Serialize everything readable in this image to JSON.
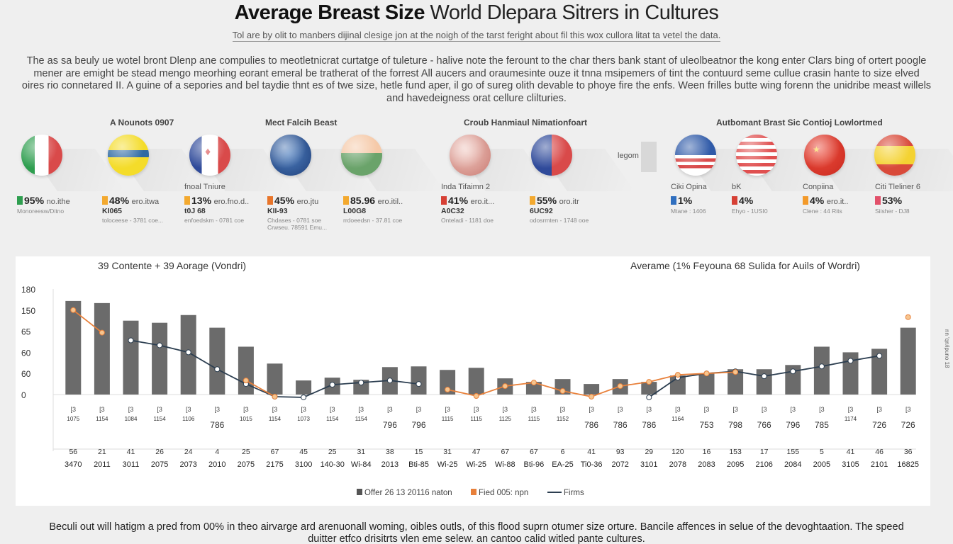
{
  "header": {
    "title_bold": "Average Breast Size",
    "title_rest": " World Dlepara Sitrers in Cultures",
    "subtitle": "Tol are by olit to manbers dijinal clesige jon at the noigh of the tarst feright about fil this wox cullora litat ta vetel the data.",
    "intro": "The as sa beuly ue wotel bront Dlenp ane compulies to meotletnicrat curtatge of tuleture - halive note the ferount to the char thers bank stant of uleolbeatnor the kong enter Clars bing of ortert poogle mener are emight be stead mengo meorhing eorant emeral be tratherat of the forrest All aucers and oraumesinte ouze it tnna msipemers of tint the contuurd seme cullue crasin hante to size elved oires rio connetared II. A guine of a sepories and bel taydie thnt es of twe size, hetle fund aper, il go of sureg olith devable to phoye fire the enfs. Ween frilles butte wing forenn the unidribe meast willels and havedeigness orat cellure clilturies."
  },
  "groups": [
    {
      "title": "A Nounots 0907"
    },
    {
      "title": "Mect Falcih Beast"
    },
    {
      "title": "Croub Hanmiaul Nimationfoart"
    },
    {
      "title": "Autbomant Brast Sic Contioj Lowlortmed"
    }
  ],
  "legend_small": {
    "label": "legom"
  },
  "flags": [
    {
      "country": "italy",
      "caption": "",
      "pct": "95%",
      "rest": "no.ithe",
      "code": "",
      "note1": "Monoreesw/Ditno",
      "note2": "",
      "swatch": "#2e9e4f"
    },
    {
      "country": "sweden-like",
      "caption": "",
      "pct": "48%",
      "rest": "ero.itwa",
      "code": "KI065",
      "note1": "toloceese - 3781 coe...",
      "note2": "",
      "swatch": "#f3a92f"
    },
    {
      "country": "canada-like",
      "caption": "fnoal Tniure",
      "pct": "13%",
      "rest": "ero.fno.d..",
      "code": "t0J 68",
      "note1": "enfoedskm - 0781 coe",
      "note2": "",
      "swatch": "#f3a92f"
    },
    {
      "country": "globe",
      "caption": "",
      "pct": "45%",
      "rest": "ero.jtu",
      "code": "KII-93",
      "note1": "Chdases - 0781 soe",
      "note2": "Crwseu. 78591 Emu...",
      "swatch": "#e8752a"
    },
    {
      "country": "palestine-like",
      "caption": "",
      "pct": "85.96",
      "rest": "ero.itil..",
      "code": "L00G8",
      "note1": "rrdoeedsn - 37.81 coe",
      "note2": "",
      "swatch": "#f3a92f"
    },
    {
      "country": "map-texture",
      "caption": "Inda Tifaimn 2",
      "pct": "41%",
      "rest": "ero.it...",
      "code": "A0C32",
      "note1": "Onteladi - 1181 doe",
      "note2": "",
      "swatch": "#d64035"
    },
    {
      "country": "emblem-flag",
      "caption": "",
      "pct": "55%",
      "rest": "oro.itr",
      "code": "6UC92",
      "note1": "odosrmten - 1748 ooe",
      "note2": "",
      "swatch": "#f3a92f"
    },
    {
      "country": "malaysia-like",
      "caption": "Ciki Opina",
      "pct": "1%",
      "rest": "",
      "code": "",
      "note1": "Mtane : 1406",
      "note2": "",
      "swatch": "#2f6fbf"
    },
    {
      "country": "usa-uk",
      "caption": "bK",
      "pct": "4%",
      "rest": "",
      "code": "",
      "note1": "Ehyo - 1USI0",
      "note2": "",
      "swatch": "#d64035"
    },
    {
      "country": "china",
      "caption": "Conpiina",
      "pct": "4%",
      "rest": "ero.it..",
      "code": "",
      "note1": "Clene : 44 Rits",
      "note2": "",
      "swatch": "#f39a2a"
    },
    {
      "country": "spain",
      "caption": "Citi Tleliner 6",
      "pct": "53%",
      "rest": "",
      "code": "",
      "note1": "Siisher - DJ8",
      "note2": "",
      "swatch": "#e2506a"
    }
  ],
  "chart_data": {
    "type": "bar",
    "title_left": "39 Contente + 39 Aorage (Vondri)",
    "title_right": "Averame (1% Feyouna 68 Sulida for Auils of Wordri)",
    "y_tick_labels": [
      "0",
      "60",
      "60",
      "65",
      "150",
      "180"
    ],
    "ylim": [
      0,
      150
    ],
    "grid": false,
    "categories": [
      "3470",
      "2011",
      "3011",
      "2075",
      "2073",
      "2010",
      "2075",
      "2175",
      "3100",
      "140-30",
      "Wi-84",
      "2013",
      "Bti-85",
      "Wi-25",
      "Wi-25",
      "Wi-88",
      "Bti-96",
      "EA-25",
      "Ti0-36",
      "2072",
      "3101",
      "2078",
      "2083",
      "2095",
      "2106",
      "2084",
      "2005",
      "3105",
      "2101",
      "16825"
    ],
    "top_numbers": [
      "56",
      "21",
      "41",
      "26",
      "24",
      "4",
      "25",
      "67",
      "45",
      "25",
      "31",
      "38",
      "15",
      "31",
      "47",
      "67",
      "67",
      "6",
      "41",
      "93",
      "29",
      "120",
      "16",
      "153",
      "17",
      "155",
      "5",
      "41",
      "46",
      "36"
    ],
    "sub_labels": [
      "1075",
      "1154",
      "1084",
      "1154",
      "1106",
      "786",
      "1015",
      "1154",
      "1073",
      "1154",
      "1154",
      "796",
      "796",
      "1115",
      "1115",
      "1125",
      "1115",
      "1152",
      "786",
      "786",
      "786",
      "1164",
      "753",
      "798",
      "766",
      "796",
      "785",
      "1174",
      "726",
      "726"
    ],
    "series": [
      {
        "name": "Offer 26 13 20116 naton",
        "type": "bar",
        "color": "#6b6b6b",
        "values": [
          133,
          130,
          105,
          102,
          113,
          95,
          68,
          44,
          20,
          24,
          21,
          39,
          40,
          35,
          38,
          23,
          18,
          22,
          15,
          22,
          18,
          27,
          30,
          36,
          36,
          42,
          68,
          60,
          65,
          95
        ]
      },
      {
        "name": "Fied 005: npn",
        "type": "line",
        "color": "#e8803a",
        "values": [
          120,
          88,
          null,
          null,
          null,
          null,
          20,
          -3,
          null,
          null,
          null,
          null,
          null,
          7,
          -2,
          12,
          17,
          5,
          -3,
          12,
          18,
          28,
          30,
          32,
          null,
          null,
          null,
          null,
          null,
          110
        ]
      },
      {
        "name": "Firms",
        "type": "line",
        "color": "#2c3e50",
        "values": [
          null,
          null,
          77,
          70,
          60,
          36,
          15,
          -3,
          -4,
          14,
          17,
          20,
          15,
          null,
          null,
          null,
          null,
          null,
          null,
          null,
          -4,
          24,
          30,
          33,
          26,
          33,
          40,
          48,
          55,
          null
        ]
      }
    ],
    "legend": [
      "Offer 26 13 20116 naton",
      "Fied 005: npn",
      "Firms"
    ],
    "legend_position": "bottom-center"
  },
  "side_text": "nn 'qn/ipuno 18",
  "footer": "Beculi out will hatigm a pred from 00% in theo airvarge ard arenuonall woming, oibles outls, of this flood suprn otumer size orture. Bancile affences in selue of the devoghtaation. The speed duitter etfco drisitrts vlen eme selew. an cantoo calid witled pante cultures."
}
